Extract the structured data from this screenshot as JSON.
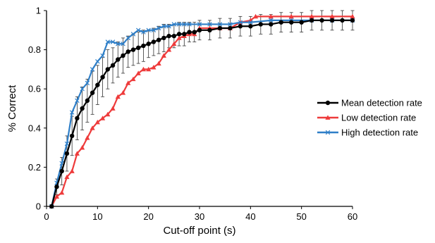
{
  "chart_data": {
    "type": "line",
    "title": "",
    "xlabel": "Cut-off point (s)",
    "ylabel": "% Correct",
    "xlim": [
      0,
      60
    ],
    "ylim": [
      0,
      1
    ],
    "x_ticks": [
      "0",
      "10",
      "20",
      "30",
      "40",
      "50",
      "60"
    ],
    "y_ticks": [
      "0",
      "0.2",
      "0.4",
      "0.6",
      "0.8",
      "1"
    ],
    "grid": false,
    "legend_position": "right",
    "error_bars": "on Mean detection rate series",
    "series": [
      {
        "name": "Mean detection rate",
        "color": "#000000",
        "marker": "circle",
        "points": [
          [
            1,
            0.0
          ],
          [
            2,
            0.1
          ],
          [
            3,
            0.18
          ],
          [
            4,
            0.27
          ],
          [
            5,
            0.36
          ],
          [
            6,
            0.45
          ],
          [
            7,
            0.5
          ],
          [
            8,
            0.54
          ],
          [
            9,
            0.58
          ],
          [
            10,
            0.62
          ],
          [
            11,
            0.66
          ],
          [
            12,
            0.7
          ],
          [
            13,
            0.72
          ],
          [
            14,
            0.75
          ],
          [
            15,
            0.77
          ],
          [
            16,
            0.79
          ],
          [
            17,
            0.8
          ],
          [
            18,
            0.81
          ],
          [
            19,
            0.82
          ],
          [
            20,
            0.83
          ],
          [
            21,
            0.84
          ],
          [
            22,
            0.85
          ],
          [
            23,
            0.86
          ],
          [
            24,
            0.87
          ],
          [
            25,
            0.87
          ],
          [
            26,
            0.88
          ],
          [
            27,
            0.88
          ],
          [
            28,
            0.89
          ],
          [
            29,
            0.89
          ],
          [
            30,
            0.9
          ],
          [
            32,
            0.9
          ],
          [
            34,
            0.91
          ],
          [
            36,
            0.91
          ],
          [
            38,
            0.92
          ],
          [
            40,
            0.92
          ],
          [
            42,
            0.93
          ],
          [
            44,
            0.93
          ],
          [
            46,
            0.94
          ],
          [
            48,
            0.94
          ],
          [
            50,
            0.94
          ],
          [
            52,
            0.95
          ],
          [
            54,
            0.95
          ],
          [
            56,
            0.95
          ],
          [
            58,
            0.95
          ],
          [
            60,
            0.95
          ]
        ],
        "error": [
          0.0,
          0.04,
          0.07,
          0.09,
          0.1,
          0.11,
          0.11,
          0.11,
          0.11,
          0.1,
          0.1,
          0.1,
          0.09,
          0.09,
          0.09,
          0.08,
          0.08,
          0.08,
          0.08,
          0.07,
          0.07,
          0.07,
          0.07,
          0.06,
          0.06,
          0.06,
          0.06,
          0.05,
          0.05,
          0.05,
          0.05,
          0.05,
          0.05,
          0.05,
          0.05,
          0.05,
          0.05,
          0.05,
          0.05,
          0.05,
          0.05,
          0.05,
          0.05,
          0.05,
          0.05
        ]
      },
      {
        "name": "Low detection rate",
        "color": "#ee3b3b",
        "marker": "triangle",
        "points": [
          [
            1,
            0.0
          ],
          [
            2,
            0.05
          ],
          [
            3,
            0.07
          ],
          [
            4,
            0.15
          ],
          [
            5,
            0.18
          ],
          [
            6,
            0.27
          ],
          [
            7,
            0.3
          ],
          [
            8,
            0.35
          ],
          [
            9,
            0.4
          ],
          [
            10,
            0.43
          ],
          [
            11,
            0.45
          ],
          [
            12,
            0.47
          ],
          [
            13,
            0.5
          ],
          [
            14,
            0.56
          ],
          [
            15,
            0.58
          ],
          [
            16,
            0.63
          ],
          [
            17,
            0.65
          ],
          [
            18,
            0.68
          ],
          [
            19,
            0.7
          ],
          [
            20,
            0.7
          ],
          [
            21,
            0.71
          ],
          [
            22,
            0.73
          ],
          [
            23,
            0.77
          ],
          [
            24,
            0.8
          ],
          [
            25,
            0.83
          ],
          [
            26,
            0.86
          ],
          [
            27,
            0.87
          ],
          [
            28,
            0.88
          ],
          [
            29,
            0.88
          ],
          [
            30,
            0.91
          ],
          [
            32,
            0.91
          ],
          [
            34,
            0.91
          ],
          [
            36,
            0.91
          ],
          [
            38,
            0.94
          ],
          [
            40,
            0.95
          ],
          [
            41,
            0.97
          ],
          [
            44,
            0.97
          ],
          [
            48,
            0.97
          ],
          [
            52,
            0.97
          ],
          [
            56,
            0.97
          ],
          [
            60,
            0.97
          ]
        ]
      },
      {
        "name": "High detection rate",
        "color": "#2f7fc8",
        "marker": "x",
        "points": [
          [
            1,
            0.0
          ],
          [
            2,
            0.12
          ],
          [
            3,
            0.22
          ],
          [
            4,
            0.32
          ],
          [
            5,
            0.48
          ],
          [
            6,
            0.54
          ],
          [
            7,
            0.6
          ],
          [
            8,
            0.63
          ],
          [
            9,
            0.7
          ],
          [
            10,
            0.74
          ],
          [
            11,
            0.77
          ],
          [
            12,
            0.84
          ],
          [
            13,
            0.84
          ],
          [
            14,
            0.83
          ],
          [
            15,
            0.83
          ],
          [
            16,
            0.86
          ],
          [
            17,
            0.88
          ],
          [
            18,
            0.9
          ],
          [
            19,
            0.89
          ],
          [
            20,
            0.9
          ],
          [
            21,
            0.9
          ],
          [
            22,
            0.91
          ],
          [
            23,
            0.92
          ],
          [
            24,
            0.92
          ],
          [
            25,
            0.93
          ],
          [
            26,
            0.93
          ],
          [
            27,
            0.93
          ],
          [
            28,
            0.93
          ],
          [
            30,
            0.93
          ],
          [
            32,
            0.93
          ],
          [
            34,
            0.93
          ],
          [
            36,
            0.93
          ],
          [
            38,
            0.94
          ],
          [
            40,
            0.94
          ],
          [
            44,
            0.95
          ],
          [
            48,
            0.95
          ],
          [
            52,
            0.95
          ],
          [
            56,
            0.95
          ],
          [
            60,
            0.95
          ]
        ]
      }
    ]
  }
}
